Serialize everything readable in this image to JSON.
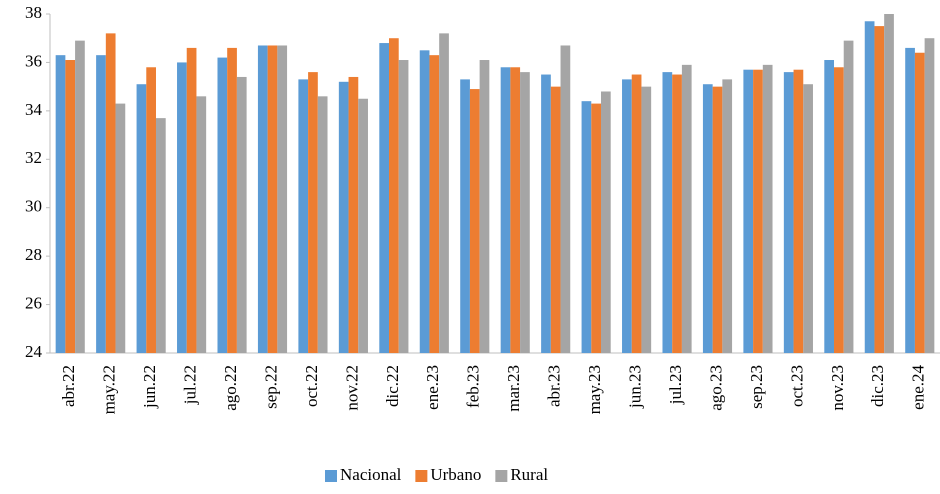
{
  "chart_data": {
    "type": "bar",
    "categories": [
      "abr.22",
      "may.22",
      "jun.22",
      "jul.22",
      "ago.22",
      "sep.22",
      "oct.22",
      "nov.22",
      "dic.22",
      "ene.23",
      "feb.23",
      "mar.23",
      "abr.23",
      "may.23",
      "jun.23",
      "jul.23",
      "ago.23",
      "sep.23",
      "oct.23",
      "nov.23",
      "dic.23",
      "ene.24"
    ],
    "series": [
      {
        "name": "Nacional",
        "color": "#5B9BD5",
        "values": [
          36.3,
          36.3,
          35.1,
          36.0,
          36.2,
          36.7,
          35.3,
          35.2,
          36.8,
          36.5,
          35.3,
          35.8,
          35.5,
          34.4,
          35.3,
          35.6,
          35.1,
          35.7,
          35.6,
          36.1,
          37.7,
          36.6
        ]
      },
      {
        "name": "Urbano",
        "color": "#ED7D31",
        "values": [
          36.1,
          37.2,
          35.8,
          36.6,
          36.6,
          36.7,
          35.6,
          35.4,
          37.0,
          36.3,
          34.9,
          35.8,
          35.0,
          34.3,
          35.5,
          35.5,
          35.0,
          35.7,
          35.7,
          35.8,
          37.5,
          36.4
        ]
      },
      {
        "name": "Rural",
        "color": "#A5A5A5",
        "values": [
          36.9,
          34.3,
          33.7,
          34.6,
          35.4,
          36.7,
          34.6,
          34.5,
          36.1,
          37.2,
          36.1,
          35.6,
          36.7,
          34.8,
          35.0,
          35.9,
          35.3,
          35.9,
          35.1,
          36.9,
          38.0,
          37.0
        ]
      }
    ],
    "ylim": [
      24,
      38
    ],
    "yticks": [
      24,
      26,
      28,
      30,
      32,
      34,
      36,
      38
    ],
    "grid": false,
    "legend": "bottom"
  }
}
